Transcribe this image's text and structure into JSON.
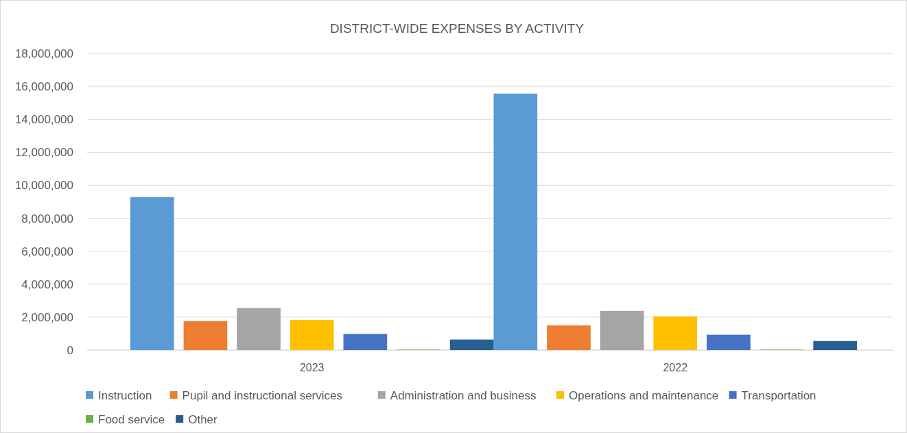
{
  "chart_data": {
    "type": "bar",
    "title": "DISTRICT-WIDE EXPENSES BY ACTIVITY",
    "categories": [
      "2023",
      "2022"
    ],
    "series": [
      {
        "name": "Instruction",
        "color": "#5b9bd5",
        "values": [
          9290000,
          15560000
        ]
      },
      {
        "name": "Pupil and instructional services",
        "color": "#ed7d31",
        "values": [
          1760000,
          1500000
        ]
      },
      {
        "name": "Administration and business",
        "color": "#a5a5a5",
        "values": [
          2550000,
          2380000
        ]
      },
      {
        "name": "Operations and maintenance",
        "color": "#ffc000",
        "values": [
          1830000,
          2050000
        ]
      },
      {
        "name": "Transportation",
        "color": "#4472c4",
        "values": [
          980000,
          930000
        ]
      },
      {
        "name": "Food service",
        "color": "#70ad47",
        "values": [
          30000,
          30000
        ]
      },
      {
        "name": "Other",
        "color": "#255e91",
        "values": [
          640000,
          550000
        ]
      }
    ],
    "ylim": [
      0,
      18000000
    ],
    "yticks": [
      {
        "value": 0,
        "label": "0"
      },
      {
        "value": 2000000,
        "label": "2,000,000"
      },
      {
        "value": 4000000,
        "label": "4,000,000"
      },
      {
        "value": 6000000,
        "label": "6,000,000"
      },
      {
        "value": 8000000,
        "label": "8,000,000"
      },
      {
        "value": 10000000,
        "label": "10,000,000"
      },
      {
        "value": 12000000,
        "label": "12,000,000"
      },
      {
        "value": 14000000,
        "label": "14,000,000"
      },
      {
        "value": 16000000,
        "label": "16,000,000"
      },
      {
        "value": 18000000,
        "label": "18,000,000"
      }
    ],
    "grid": "y",
    "legend": "bottom"
  }
}
